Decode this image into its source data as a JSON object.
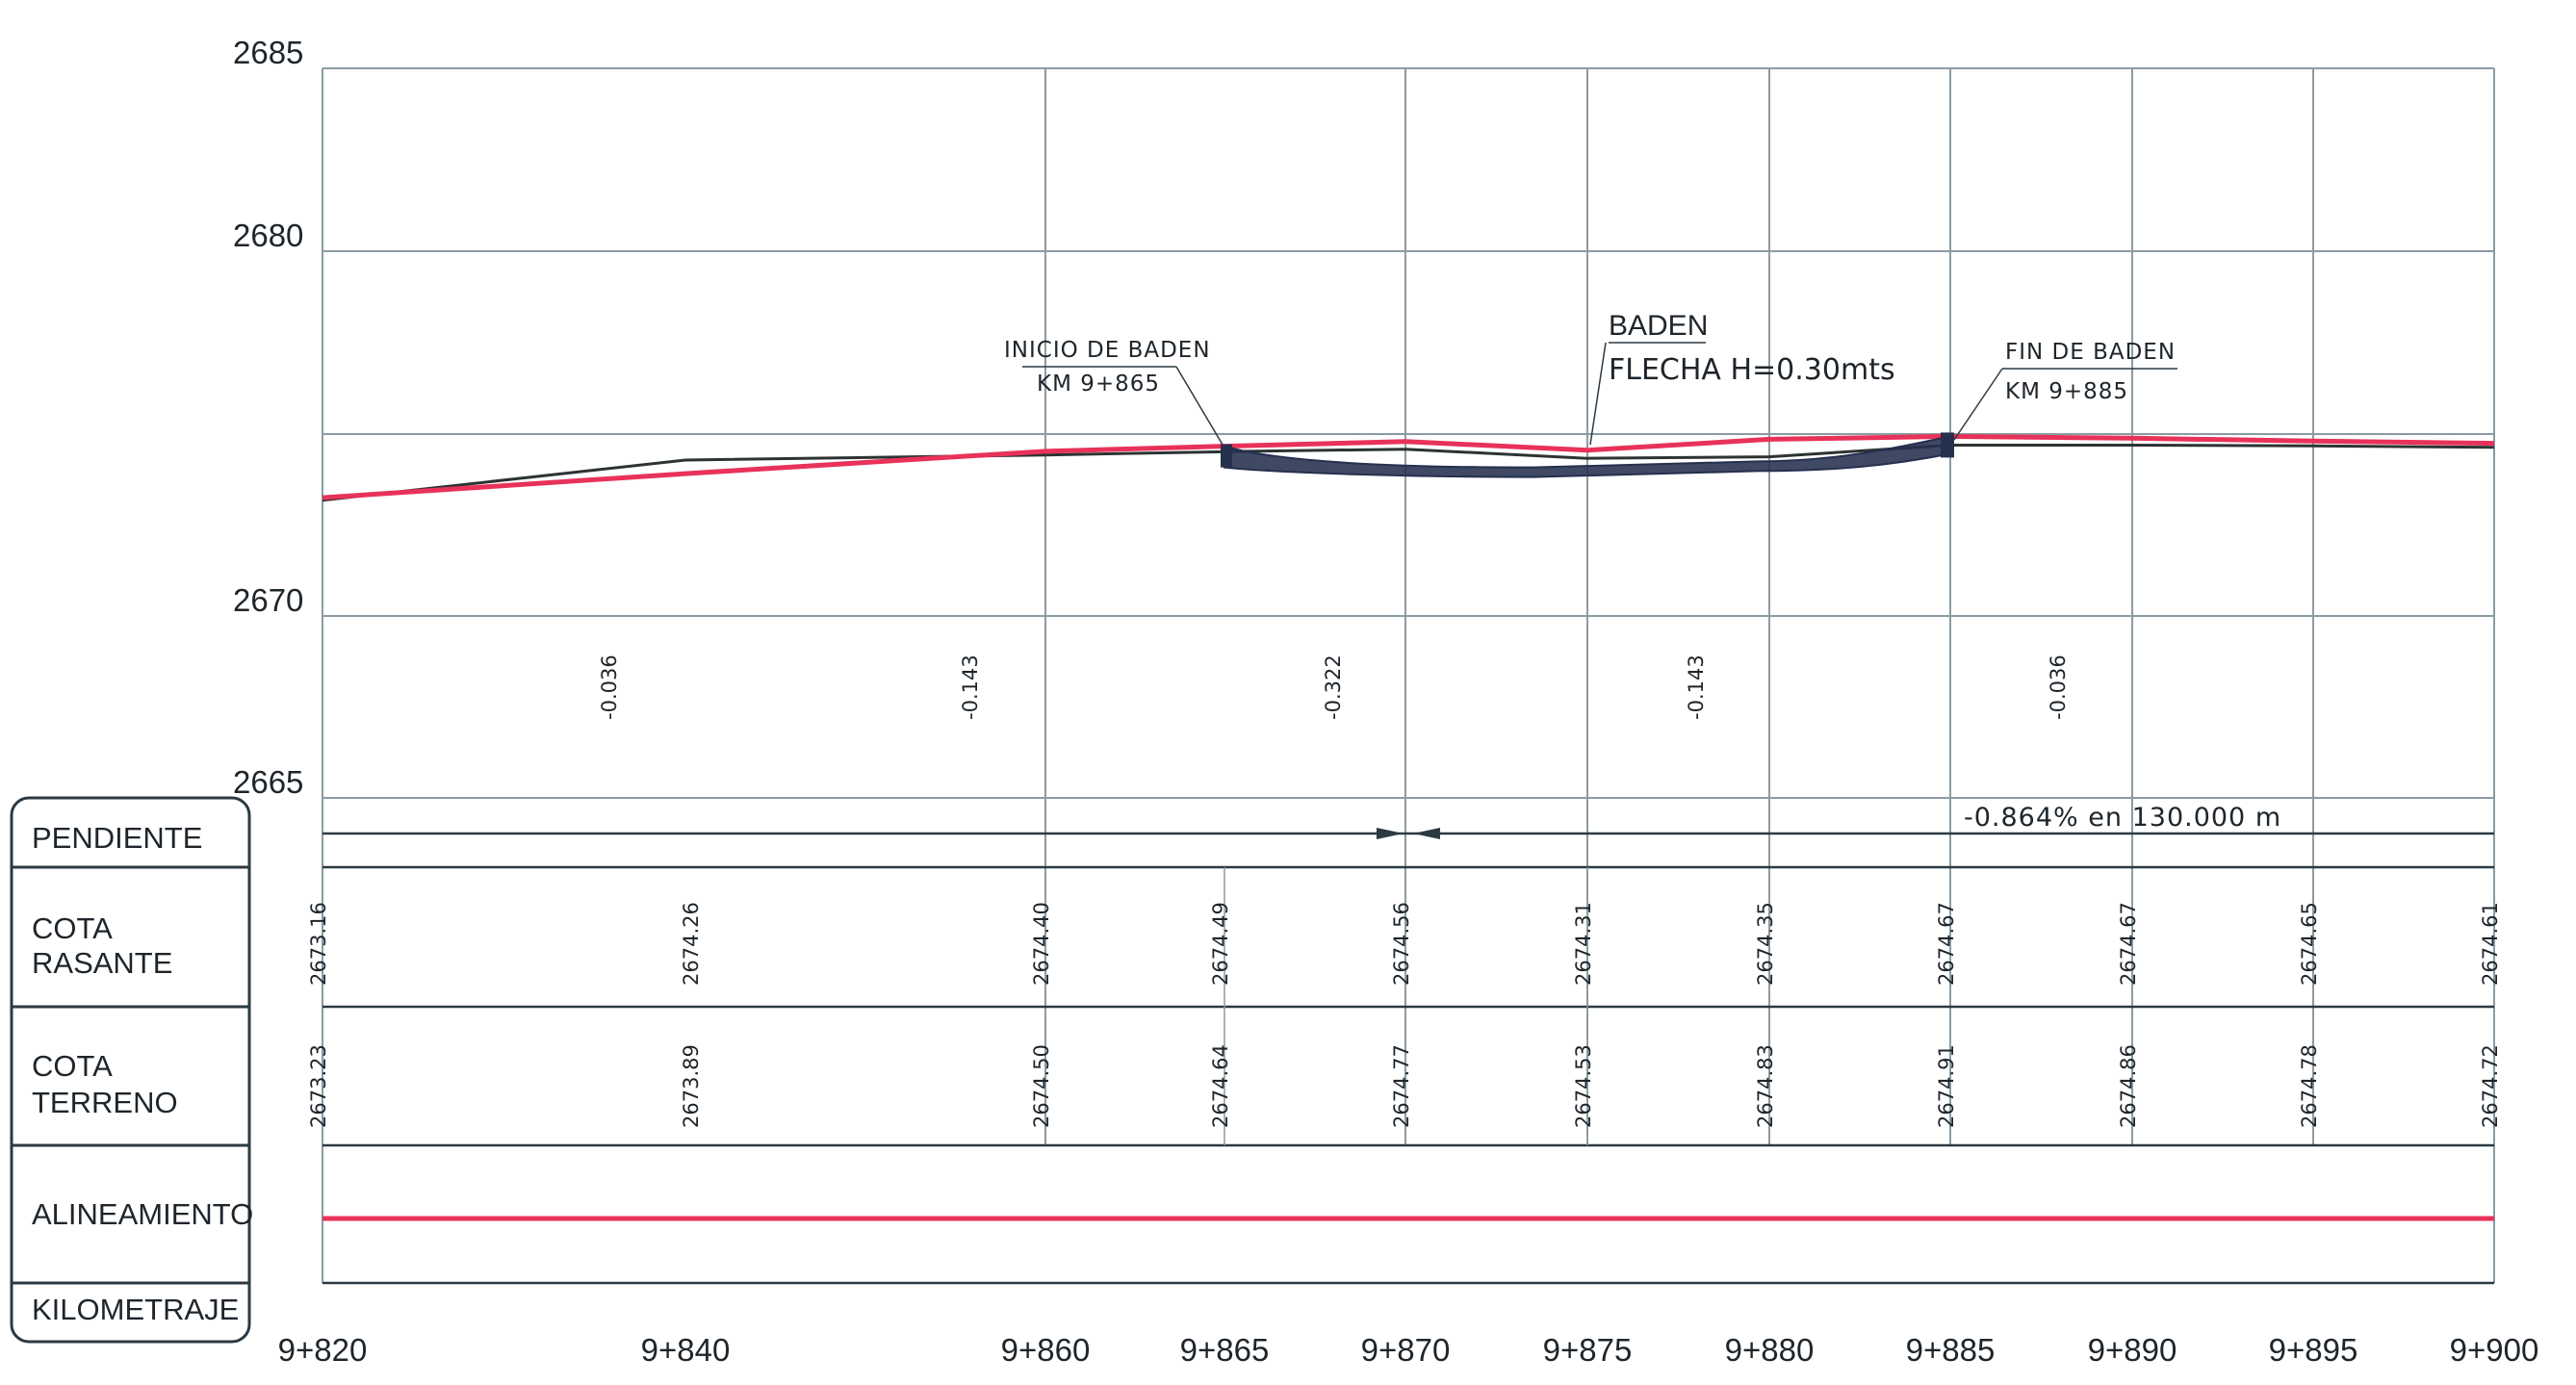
{
  "colors": {
    "grid": "#8c9ba3",
    "frame": "#2b3a42",
    "rasante": "#e8325a",
    "terrain": "#2d3333",
    "baden": "#26304f",
    "text": "#1e252b"
  },
  "y_axis_labels": [
    "2685",
    "2680",
    "2670",
    "2665"
  ],
  "top_profile": {
    "rasante_elevations": [
      2673.16,
      2674.26,
      2674.4,
      2674.49,
      2674.56,
      2674.31,
      2674.35,
      2674.67,
      2674.67,
      2674.65,
      2674.61
    ],
    "terrain_elevations": [
      2673.23,
      2673.89,
      2674.5,
      2674.64,
      2674.77,
      2674.53,
      2674.83,
      2674.91,
      2674.86,
      2674.78,
      2674.72
    ]
  },
  "annotations": {
    "inicio": {
      "line1": "INICIO DE BADEN",
      "line2": "KM 9+865"
    },
    "baden": {
      "title": "BADEN",
      "flecha": "FLECHA H=0.30mts"
    },
    "fin": {
      "line1": "FIN DE BADEN",
      "line2": "KM 9+885"
    }
  },
  "vertical_values": [
    "-0.036",
    "-0.143",
    "-0.322",
    "-0.143",
    "-0.036"
  ],
  "legend": {
    "pendiente": "PENDIENTE",
    "cota_rasante": [
      "COTA",
      "RASANTE"
    ],
    "cota_terreno": [
      "COTA",
      "TERRENO"
    ],
    "alineamiento": "ALINEAMIENTO",
    "kilometraje": "KILOMETRAJE"
  },
  "pendiente_text": "-0.864% en 130.000 m",
  "stations": [
    "9+820",
    "9+840",
    "9+860",
    "9+865",
    "9+870",
    "9+875",
    "9+880",
    "9+885",
    "9+890",
    "9+895",
    "9+900"
  ],
  "cota_rasante_values": [
    "2673.16",
    "2674.26",
    "2674.40",
    "2674.49",
    "2674.56",
    "2674.31",
    "2674.35",
    "2674.67",
    "2674.67",
    "2674.65",
    "2674.61"
  ],
  "cota_terreno_values": [
    "2673.23",
    "2673.89",
    "2674.50",
    "2674.64",
    "2674.77",
    "2674.53",
    "2674.83",
    "2674.91",
    "2674.86",
    "2674.78",
    "2674.72"
  ]
}
